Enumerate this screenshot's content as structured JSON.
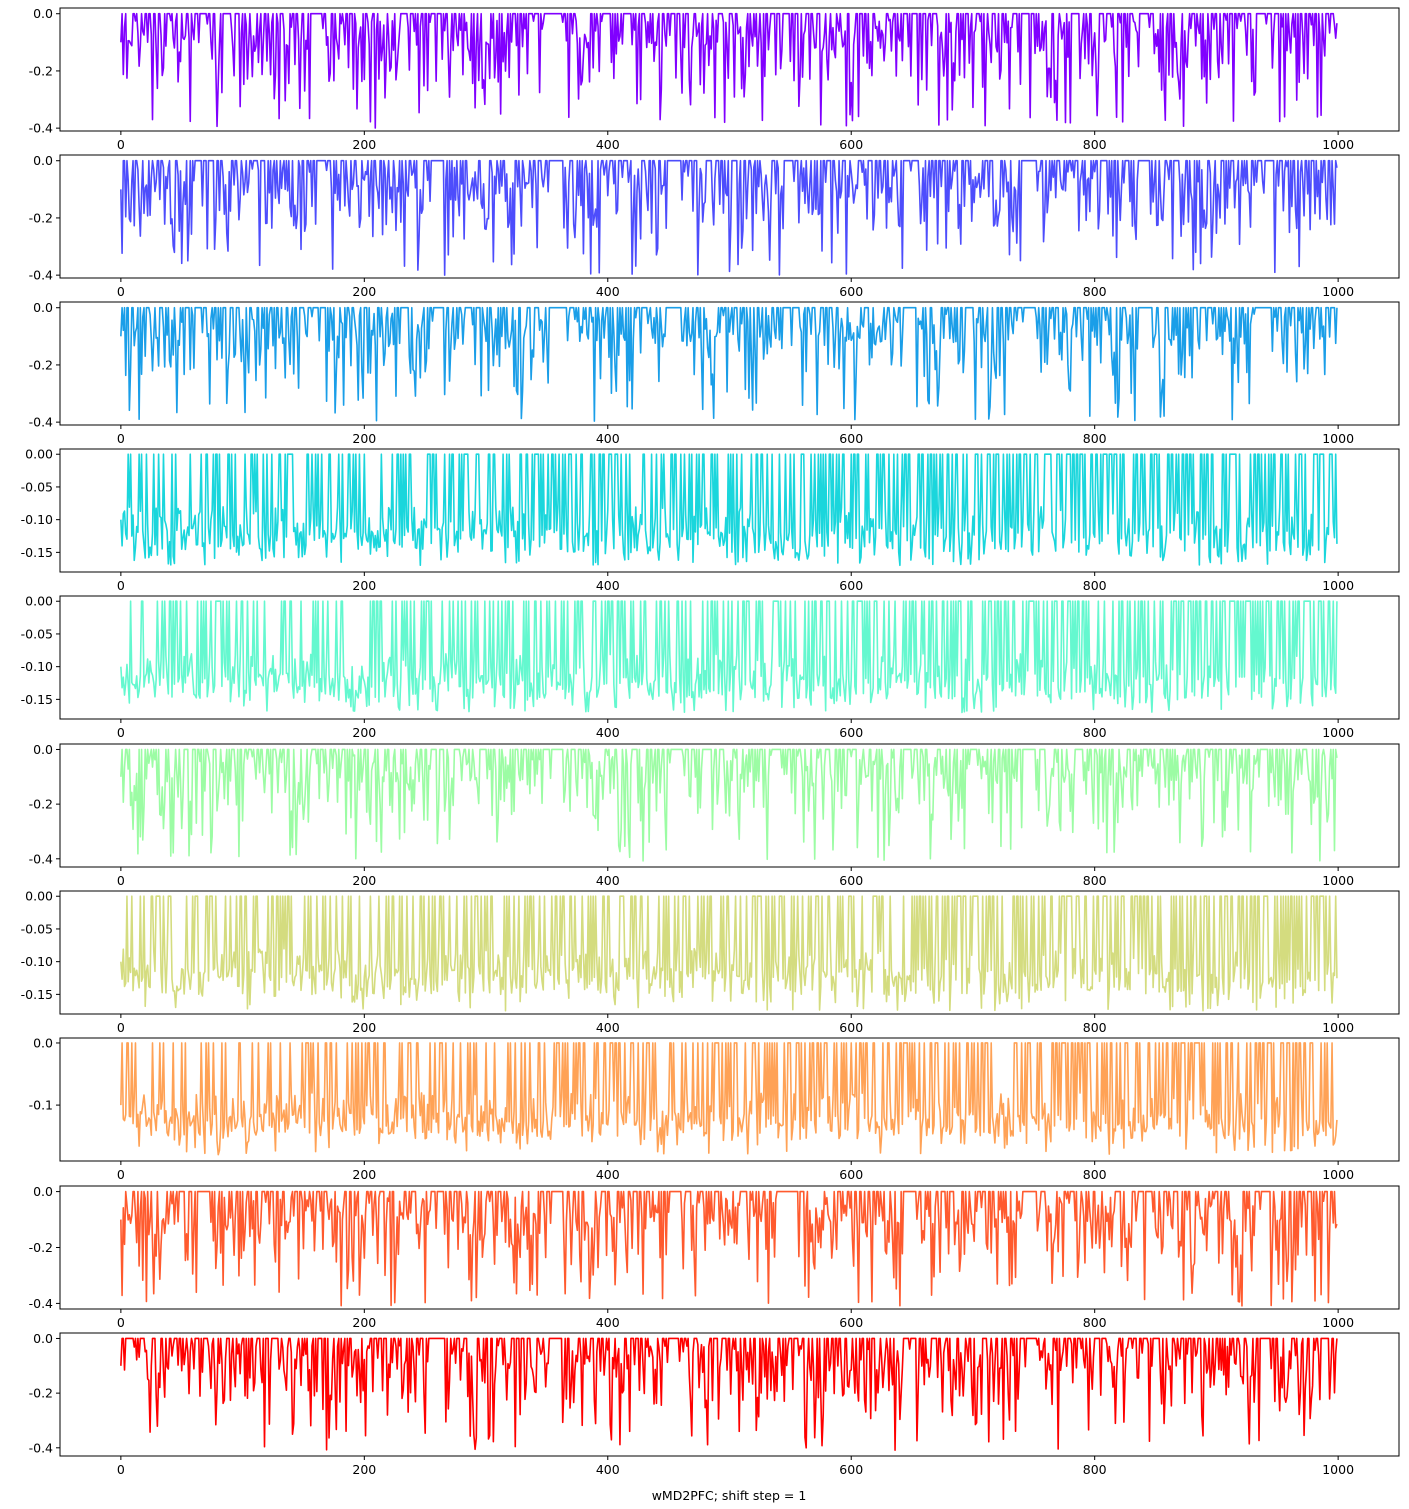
{
  "chart_data": {
    "type": "line",
    "xlabel": "wMD2PFC; shift step = 1",
    "xlim": [
      -50,
      1050
    ],
    "x_ticks": [
      0,
      200,
      400,
      600,
      800,
      1000
    ],
    "n_points": 1000,
    "panels": [
      {
        "color": "#8000ff",
        "ylim": [
          -0.41,
          0.02
        ],
        "y_ticks": [
          0.0,
          -0.2,
          -0.4
        ],
        "y_tick_labels": [
          "0.0",
          "-0.2",
          "-0.4"
        ],
        "start_value": -0.1,
        "min_value": -0.4,
        "baseline": 0.0
      },
      {
        "color": "#4d4dfc",
        "ylim": [
          -0.41,
          0.02
        ],
        "y_ticks": [
          0.0,
          -0.2,
          -0.4
        ],
        "y_tick_labels": [
          "0.0",
          "-0.2",
          "-0.4"
        ],
        "start_value": -0.1,
        "min_value": -0.4,
        "baseline": 0.0
      },
      {
        "color": "#1a9ee8",
        "ylim": [
          -0.41,
          0.02
        ],
        "y_ticks": [
          0.0,
          -0.2,
          -0.4
        ],
        "y_tick_labels": [
          "0.0",
          "-0.2",
          "-0.4"
        ],
        "start_value": -0.1,
        "min_value": -0.4,
        "baseline": 0.0
      },
      {
        "color": "#1ad6dc",
        "ylim": [
          -0.18,
          0.008
        ],
        "y_ticks": [
          0.0,
          -0.05,
          -0.1,
          -0.15
        ],
        "y_tick_labels": [
          "0.00",
          "-0.05",
          "-0.10",
          "-0.15"
        ],
        "start_value": -0.1,
        "min_value": -0.17,
        "baseline": 0.0
      },
      {
        "color": "#64f8cf",
        "ylim": [
          -0.18,
          0.008
        ],
        "y_ticks": [
          0.0,
          -0.05,
          -0.1,
          -0.15
        ],
        "y_tick_labels": [
          "0.00",
          "-0.05",
          "-0.10",
          "-0.15"
        ],
        "start_value": -0.1,
        "min_value": -0.17,
        "baseline": 0.0
      },
      {
        "color": "#9cfca4",
        "ylim": [
          -0.43,
          0.02
        ],
        "y_ticks": [
          0.0,
          -0.2,
          -0.4
        ],
        "y_tick_labels": [
          "0.0",
          "-0.2",
          "-0.4"
        ],
        "start_value": -0.1,
        "min_value": -0.41,
        "baseline": 0.0
      },
      {
        "color": "#d4dc7f",
        "ylim": [
          -0.18,
          0.008
        ],
        "y_ticks": [
          0.0,
          -0.05,
          -0.1,
          -0.15
        ],
        "y_tick_labels": [
          "0.00",
          "-0.05",
          "-0.10",
          "-0.15"
        ],
        "start_value": -0.1,
        "min_value": -0.175,
        "baseline": 0.0
      },
      {
        "color": "#ffa256",
        "ylim": [
          -0.19,
          0.008
        ],
        "y_ticks": [
          0.0,
          -0.1
        ],
        "y_tick_labels": [
          "0.0",
          "-0.1"
        ],
        "start_value": -0.1,
        "min_value": -0.18,
        "baseline": 0.0
      },
      {
        "color": "#ff5a2e",
        "ylim": [
          -0.42,
          0.02
        ],
        "y_ticks": [
          0.0,
          -0.2,
          -0.4
        ],
        "y_tick_labels": [
          "0.0",
          "-0.2",
          "-0.4"
        ],
        "start_value": -0.1,
        "min_value": -0.41,
        "baseline": 0.0
      },
      {
        "color": "#ff0000",
        "ylim": [
          -0.43,
          0.02
        ],
        "y_ticks": [
          0.0,
          -0.2,
          -0.4
        ],
        "y_tick_labels": [
          "0.0",
          "-0.2",
          "-0.4"
        ],
        "start_value": -0.1,
        "min_value": -0.41,
        "baseline": 0.0
      }
    ]
  }
}
